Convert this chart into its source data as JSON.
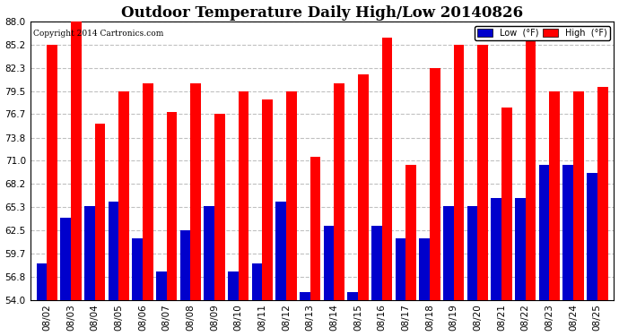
{
  "title": "Outdoor Temperature Daily High/Low 20140826",
  "copyright": "Copyright 2014 Cartronics.com",
  "dates": [
    "08/02",
    "08/03",
    "08/04",
    "08/05",
    "08/06",
    "08/07",
    "08/08",
    "08/09",
    "08/10",
    "08/11",
    "08/12",
    "08/13",
    "08/14",
    "08/15",
    "08/16",
    "08/17",
    "08/18",
    "08/19",
    "08/20",
    "08/21",
    "08/22",
    "08/23",
    "08/24",
    "08/25"
  ],
  "highs": [
    85.2,
    88.0,
    75.5,
    79.5,
    80.5,
    77.0,
    80.5,
    76.7,
    79.5,
    78.5,
    79.5,
    71.5,
    80.5,
    81.5,
    86.0,
    70.5,
    82.3,
    85.2,
    85.2,
    77.5,
    86.0,
    79.5,
    79.5,
    80.0
  ],
  "lows": [
    58.5,
    64.0,
    65.5,
    66.0,
    61.5,
    57.5,
    62.5,
    65.5,
    57.5,
    58.5,
    66.0,
    55.0,
    63.0,
    55.0,
    63.0,
    61.5,
    61.5,
    65.5,
    65.5,
    66.5,
    66.5,
    70.5,
    70.5,
    69.5
  ],
  "ylim_min": 54.0,
  "ylim_max": 88.0,
  "yticks": [
    54.0,
    56.8,
    59.7,
    62.5,
    65.3,
    68.2,
    71.0,
    73.8,
    76.7,
    79.5,
    82.3,
    85.2,
    88.0
  ],
  "high_color": "#ff0000",
  "low_color": "#0000cc",
  "bg_color": "#ffffff",
  "grid_color": "#c0c0c0",
  "title_fontsize": 12,
  "bar_width": 0.44
}
